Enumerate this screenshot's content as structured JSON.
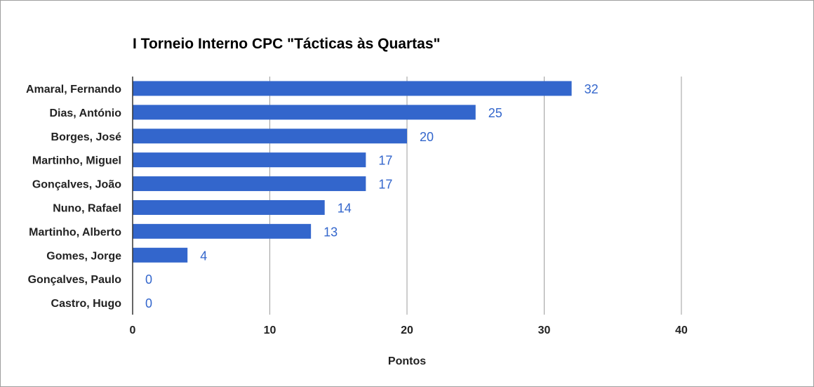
{
  "chart_data": {
    "type": "bar",
    "orientation": "horizontal",
    "title": "I Torneio Interno CPC \"Tácticas às Quartas\"",
    "xlabel": "Pontos",
    "ylabel": "",
    "categories": [
      "Amaral, Fernando",
      "Dias, António",
      "Borges, José",
      "Martinho, Miguel",
      "Gonçalves, João",
      "Nuno, Rafael",
      "Martinho, Alberto",
      "Gomes, Jorge",
      "Gonçalves, Paulo",
      "Castro, Hugo"
    ],
    "values": [
      32,
      25,
      20,
      17,
      17,
      14,
      13,
      4,
      0,
      0
    ],
    "xlim": [
      0,
      40
    ],
    "xticks": [
      0,
      10,
      20,
      30,
      40
    ],
    "grid": true,
    "legend": "none",
    "data_labels": true,
    "colors": {
      "bar": "#3366cc",
      "data_label": "#3366cc",
      "grid": "#9e9e9e",
      "axis": "#333333",
      "text": "#222222"
    }
  }
}
